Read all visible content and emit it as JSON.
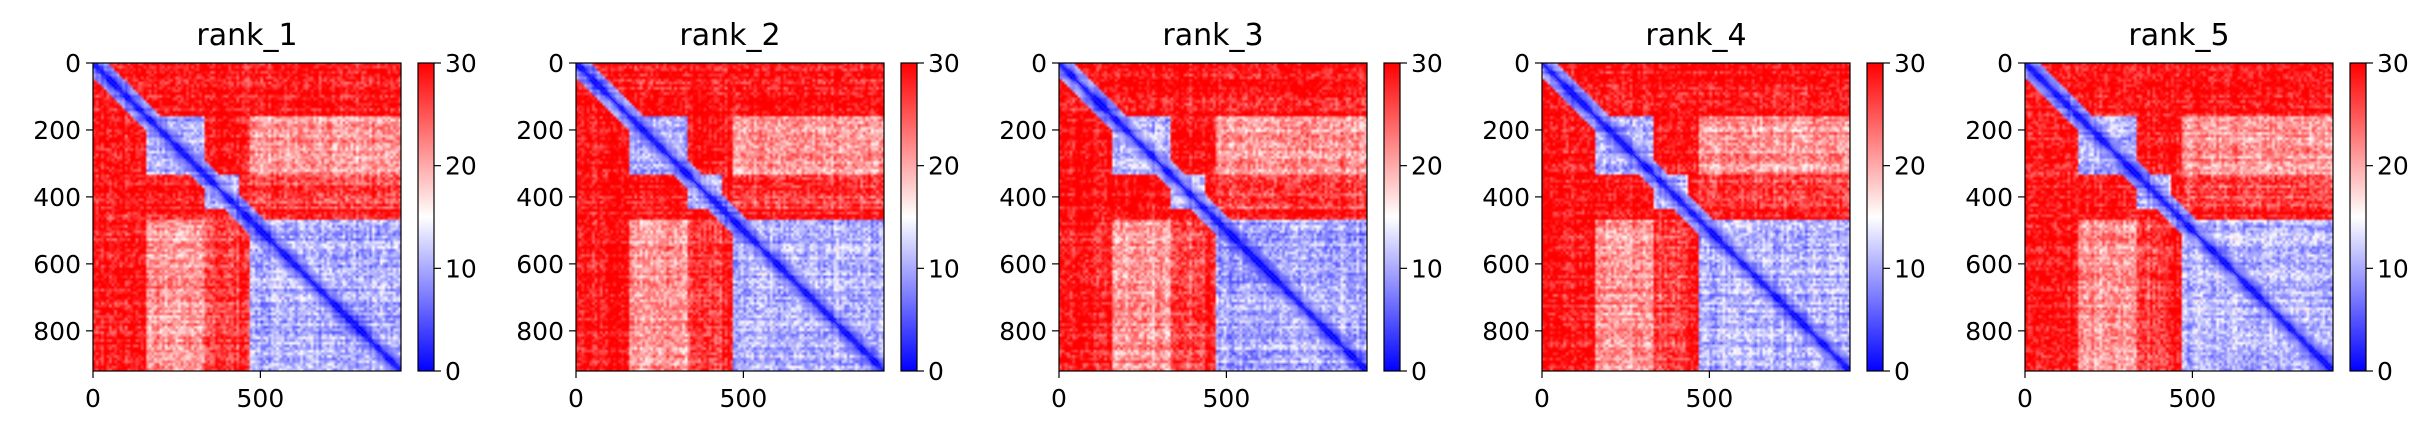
{
  "chart_data": [
    {
      "type": "heatmap",
      "title": "rank_1",
      "xticks": [
        0,
        500
      ],
      "yticks": [
        0,
        200,
        400,
        600,
        800
      ],
      "range": [
        0,
        920
      ],
      "colorbar": {
        "min": 0,
        "max": 30,
        "ticks": [
          0,
          10,
          20,
          30
        ],
        "colors": [
          "#0000ff",
          "#ffffff",
          "#ff0000"
        ]
      },
      "blocks": [
        [
          160,
          330
        ],
        [
          330,
          440
        ],
        [
          470,
          920
        ]
      ]
    },
    {
      "type": "heatmap",
      "title": "rank_2",
      "xticks": [
        0,
        500
      ],
      "yticks": [
        0,
        200,
        400,
        600,
        800
      ],
      "range": [
        0,
        920
      ],
      "colorbar": {
        "min": 0,
        "max": 30,
        "ticks": [
          0,
          10,
          20,
          30
        ],
        "colors": [
          "#0000ff",
          "#ffffff",
          "#ff0000"
        ]
      },
      "blocks": [
        [
          160,
          330
        ],
        [
          330,
          440
        ],
        [
          470,
          920
        ]
      ]
    },
    {
      "type": "heatmap",
      "title": "rank_3",
      "xticks": [
        0,
        500
      ],
      "yticks": [
        0,
        200,
        400,
        600,
        800
      ],
      "range": [
        0,
        920
      ],
      "colorbar": {
        "min": 0,
        "max": 30,
        "ticks": [
          0,
          10,
          20,
          30
        ],
        "colors": [
          "#0000ff",
          "#ffffff",
          "#ff0000"
        ]
      },
      "blocks": [
        [
          160,
          330
        ],
        [
          330,
          440
        ],
        [
          470,
          920
        ]
      ]
    },
    {
      "type": "heatmap",
      "title": "rank_4",
      "xticks": [
        0,
        500
      ],
      "yticks": [
        0,
        200,
        400,
        600,
        800
      ],
      "range": [
        0,
        920
      ],
      "colorbar": {
        "min": 0,
        "max": 30,
        "ticks": [
          0,
          10,
          20,
          30
        ],
        "colors": [
          "#0000ff",
          "#ffffff",
          "#ff0000"
        ]
      },
      "blocks": [
        [
          160,
          330
        ],
        [
          330,
          440
        ],
        [
          470,
          920
        ]
      ]
    },
    {
      "type": "heatmap",
      "title": "rank_5",
      "xticks": [
        0,
        500
      ],
      "yticks": [
        0,
        200,
        400,
        600,
        800
      ],
      "range": [
        0,
        920
      ],
      "colorbar": {
        "min": 0,
        "max": 30,
        "ticks": [
          0,
          10,
          20,
          30
        ],
        "colors": [
          "#0000ff",
          "#ffffff",
          "#ff0000"
        ]
      },
      "blocks": [
        [
          160,
          330
        ],
        [
          330,
          440
        ],
        [
          470,
          920
        ]
      ]
    }
  ]
}
